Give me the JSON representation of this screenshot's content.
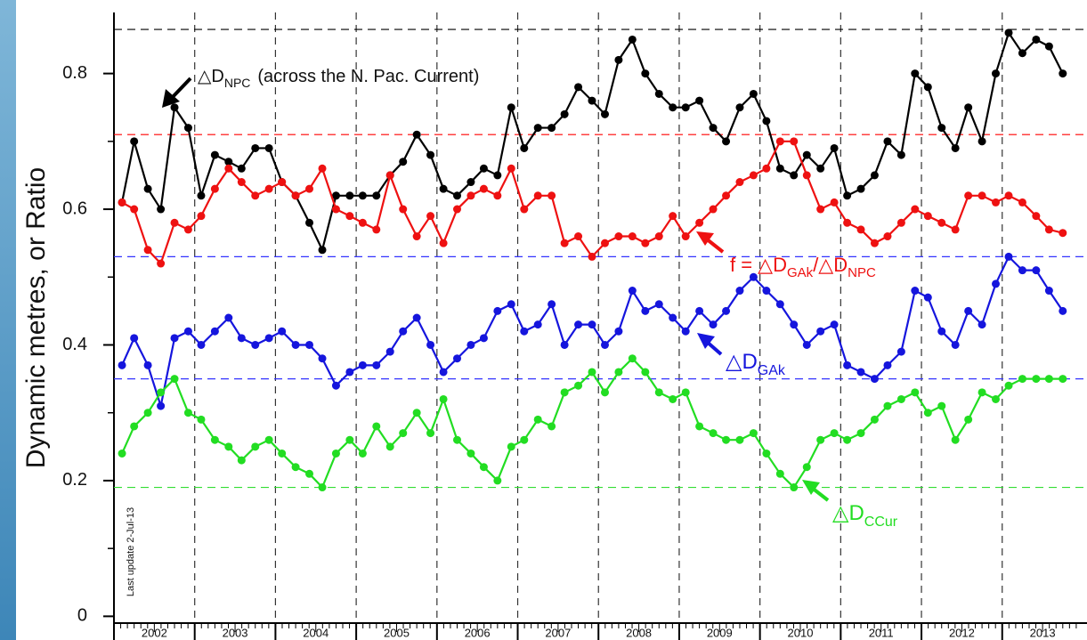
{
  "chart_data": {
    "type": "line",
    "y_label": "Dynamic metres, or Ratio",
    "footnote": "Last update 2-Jul-13",
    "xlim": [
      2002,
      2014.05
    ],
    "ylim": [
      -0.01,
      0.89
    ],
    "yticks": [
      0,
      0.2,
      0.4,
      0.6,
      0.8
    ],
    "xticks": [
      {
        "value": 2002.5,
        "label": "2002"
      },
      {
        "value": 2003.5,
        "label": "2003"
      },
      {
        "value": 2004.5,
        "label": "2004"
      },
      {
        "value": 2005.5,
        "label": "2005"
      },
      {
        "value": 2006.5,
        "label": "2006"
      },
      {
        "value": 2007.5,
        "label": "2007"
      },
      {
        "value": 2008.5,
        "label": "2008"
      },
      {
        "value": 2009.5,
        "label": "2009"
      },
      {
        "value": 2010.5,
        "label": "2010"
      },
      {
        "value": 2011.5,
        "label": "2011"
      },
      {
        "value": 2012.5,
        "label": "2012"
      },
      {
        "value": 2013.5,
        "label": "2013"
      }
    ],
    "ref_lines": [
      {
        "value": 0.865,
        "color": "#000000"
      },
      {
        "value": 0.71,
        "color": "#ff0000"
      },
      {
        "value": 0.53,
        "color": "#3333ff"
      },
      {
        "value": 0.35,
        "color": "#3333ff"
      },
      {
        "value": 0.19,
        "color": "#33dd33"
      }
    ],
    "x": [
      2002.1,
      2002.25,
      2002.42,
      2002.58,
      2002.75,
      2002.92,
      2003.08,
      2003.25,
      2003.42,
      2003.58,
      2003.75,
      2003.92,
      2004.08,
      2004.25,
      2004.42,
      2004.58,
      2004.75,
      2004.92,
      2005.08,
      2005.25,
      2005.42,
      2005.58,
      2005.75,
      2005.92,
      2006.08,
      2006.25,
      2006.42,
      2006.58,
      2006.75,
      2006.92,
      2007.08,
      2007.25,
      2007.42,
      2007.58,
      2007.75,
      2007.92,
      2008.08,
      2008.25,
      2008.42,
      2008.58,
      2008.75,
      2008.92,
      2009.08,
      2009.25,
      2009.42,
      2009.58,
      2009.75,
      2009.92,
      2010.08,
      2010.25,
      2010.42,
      2010.58,
      2010.75,
      2010.92,
      2011.08,
      2011.25,
      2011.42,
      2011.58,
      2011.75,
      2011.92,
      2012.08,
      2012.25,
      2012.42,
      2012.58,
      2012.75,
      2012.92,
      2013.08,
      2013.25,
      2013.42,
      2013.58,
      2013.75
    ],
    "series": [
      {
        "color": "#000000",
        "values": [
          0.61,
          0.7,
          0.63,
          0.6,
          0.75,
          0.72,
          0.62,
          0.68,
          0.67,
          0.66,
          0.69,
          0.69,
          0.64,
          0.62,
          0.58,
          0.54,
          0.62,
          0.62,
          0.62,
          0.62,
          0.65,
          0.67,
          0.71,
          0.68,
          0.63,
          0.62,
          0.64,
          0.66,
          0.65,
          0.75,
          0.69,
          0.72,
          0.72,
          0.74,
          0.78,
          0.76,
          0.74,
          0.82,
          0.85,
          0.8,
          0.77,
          0.75,
          0.75,
          0.76,
          0.72,
          0.7,
          0.75,
          0.77,
          0.73,
          0.66,
          0.65,
          0.68,
          0.66,
          0.69,
          0.62,
          0.63,
          0.65,
          0.7,
          0.68,
          0.8,
          0.78,
          0.72,
          0.69,
          0.75,
          0.7,
          0.8,
          0.86,
          0.83,
          0.85,
          0.84,
          0.8
        ]
      },
      {
        "color": "#ee1111",
        "values": [
          0.61,
          0.6,
          0.54,
          0.52,
          0.58,
          0.57,
          0.59,
          0.63,
          0.66,
          0.64,
          0.62,
          0.63,
          0.64,
          0.62,
          0.63,
          0.66,
          0.6,
          0.59,
          0.58,
          0.57,
          0.65,
          0.6,
          0.56,
          0.59,
          0.55,
          0.6,
          0.62,
          0.63,
          0.62,
          0.66,
          0.6,
          0.62,
          0.62,
          0.55,
          0.56,
          0.53,
          0.55,
          0.56,
          0.56,
          0.55,
          0.56,
          0.59,
          0.56,
          0.58,
          0.6,
          0.62,
          0.64,
          0.65,
          0.66,
          0.7,
          0.7,
          0.65,
          0.6,
          0.61,
          0.58,
          0.57,
          0.55,
          0.56,
          0.58,
          0.6,
          0.59,
          0.58,
          0.57,
          0.62,
          0.62,
          0.61,
          0.62,
          0.61,
          0.59,
          0.57,
          0.565
        ]
      },
      {
        "color": "#1515dd",
        "values": [
          0.37,
          0.41,
          0.37,
          0.31,
          0.41,
          0.42,
          0.4,
          0.42,
          0.44,
          0.41,
          0.4,
          0.41,
          0.42,
          0.4,
          0.4,
          0.38,
          0.34,
          0.36,
          0.37,
          0.37,
          0.39,
          0.42,
          0.44,
          0.4,
          0.36,
          0.38,
          0.4,
          0.41,
          0.45,
          0.46,
          0.42,
          0.43,
          0.46,
          0.4,
          0.43,
          0.43,
          0.4,
          0.42,
          0.48,
          0.45,
          0.46,
          0.44,
          0.42,
          0.45,
          0.43,
          0.45,
          0.48,
          0.5,
          0.48,
          0.46,
          0.43,
          0.4,
          0.42,
          0.43,
          0.37,
          0.36,
          0.35,
          0.37,
          0.39,
          0.48,
          0.47,
          0.42,
          0.4,
          0.45,
          0.43,
          0.49,
          0.53,
          0.51,
          0.51,
          0.48,
          0.45
        ]
      },
      {
        "color": "#22dd22",
        "values": [
          0.24,
          0.28,
          0.3,
          0.33,
          0.35,
          0.3,
          0.29,
          0.26,
          0.25,
          0.23,
          0.25,
          0.26,
          0.24,
          0.22,
          0.21,
          0.19,
          0.24,
          0.26,
          0.24,
          0.28,
          0.25,
          0.27,
          0.3,
          0.27,
          0.32,
          0.26,
          0.24,
          0.22,
          0.2,
          0.25,
          0.26,
          0.29,
          0.28,
          0.33,
          0.34,
          0.36,
          0.33,
          0.36,
          0.38,
          0.36,
          0.33,
          0.32,
          0.33,
          0.28,
          0.27,
          0.26,
          0.26,
          0.27,
          0.24,
          0.21,
          0.19,
          0.22,
          0.26,
          0.27,
          0.26,
          0.27,
          0.29,
          0.31,
          0.32,
          0.33,
          0.3,
          0.31,
          0.26,
          0.29,
          0.33,
          0.32,
          0.34,
          0.35,
          0.35,
          0.35,
          0.35
        ]
      }
    ],
    "annotations": {
      "npc": {
        "symbol": "△D",
        "sub": "NPC",
        "text": "(across the N. Pac. Current)"
      },
      "f": {
        "prefix": "f = △D",
        "sub1": "GAk",
        "mid": "/△D",
        "sub2": "NPC"
      },
      "gak": {
        "symbol": "△D",
        "sub": "GAk"
      },
      "ccur": {
        "symbol": "△D",
        "sub": "CCur"
      }
    }
  }
}
